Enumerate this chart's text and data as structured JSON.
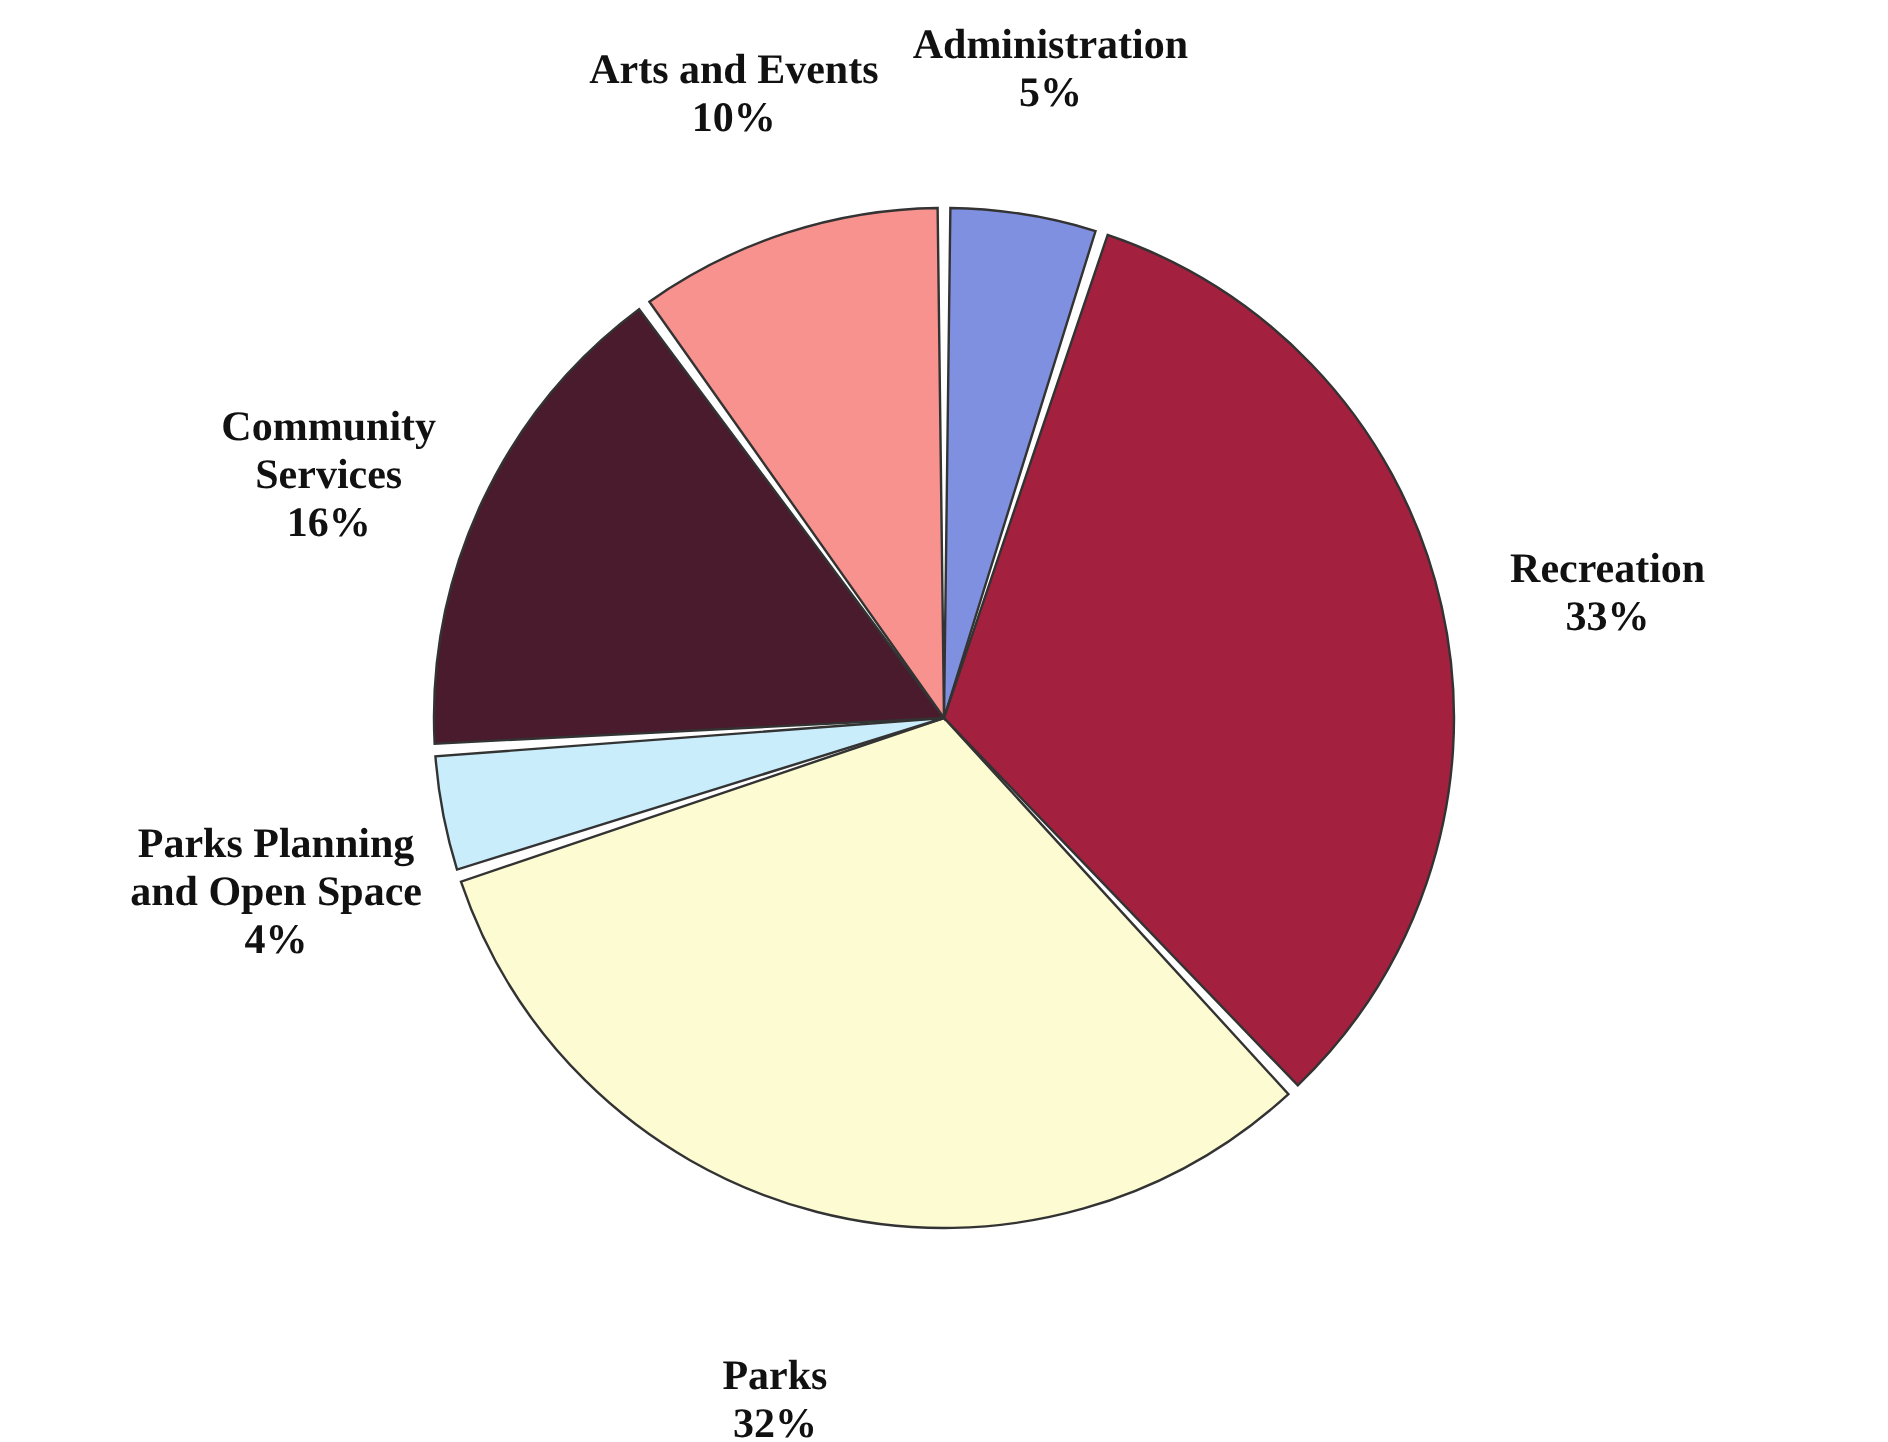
{
  "chart_data": {
    "type": "pie",
    "categories": [
      "Administration",
      "Recreation",
      "Parks",
      "Parks Planning and Open Space",
      "Community Services",
      "Arts and Events"
    ],
    "values": [
      5,
      33,
      32,
      4,
      16,
      10
    ],
    "value_labels": [
      "5%",
      "33%",
      "32%",
      "4%",
      "16%",
      "10%"
    ],
    "colors": [
      "#8090e0",
      "#a3213f",
      "#fdfbd2",
      "#c9edfa",
      "#4a1b2d",
      "#f7928e"
    ],
    "legend": false
  }
}
